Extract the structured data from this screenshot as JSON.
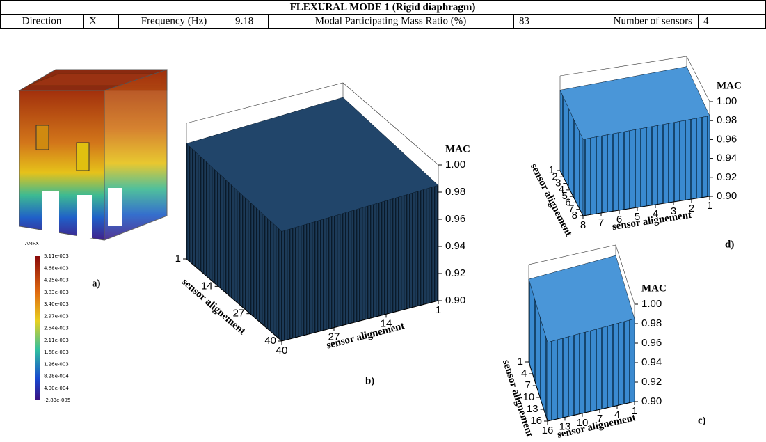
{
  "table": {
    "title": "FLEXURAL  MODE 1 (Rigid diaphragm)",
    "row": [
      "Direction",
      "X",
      "Frequency (Hz)",
      9.18,
      "Modal Participating Mass Ratio (%)",
      83,
      "Number of sensors",
      4
    ]
  },
  "panel_a": {
    "label": "a)",
    "legend_title": "AMPX",
    "legend_values": [
      "5.11e-003",
      "4.68e-003",
      "4.25e-003",
      "3.83e-003",
      "3.40e-003",
      "2.97e-003",
      "2.54e-003",
      "2.11e-003",
      "1.68e-003",
      "1.26e-003",
      "8.28e-004",
      "4.00e-004",
      "-2.83e-005"
    ]
  },
  "panels": [
    {
      "label": "b)",
      "zlabel": "MAC",
      "xlabel": "sensor alignement",
      "ylabel": "sensor alignement",
      "xticks": [
        1,
        14,
        27,
        40
      ],
      "yticks": [
        40,
        27,
        14,
        1
      ],
      "zlim": [
        0.9,
        1.0
      ],
      "zticks": [
        {
          "value": 1.0,
          "label": "1.00"
        },
        0.98,
        0.96,
        0.94,
        0.92,
        {
          "value": 0.9,
          "label": "0.90"
        }
      ]
    },
    {
      "label": "c)",
      "zlabel": "MAC",
      "xlabel": "sensor alignement",
      "ylabel": "sensor alignement",
      "xticks": [
        1,
        4,
        7,
        10,
        13,
        16
      ],
      "yticks": [
        16,
        13,
        10,
        7,
        4,
        1
      ],
      "zlim": [
        0.9,
        1.0
      ],
      "zticks": [
        {
          "value": 1.0,
          "label": "1.00"
        },
        0.98,
        0.96,
        0.94,
        0.92,
        {
          "value": 0.9,
          "label": "0.90"
        }
      ]
    },
    {
      "label": "d)",
      "zlabel": "MAC",
      "xlabel": "sensor alignement",
      "ylabel": "sensor alignement",
      "xticks": [
        1,
        2,
        3,
        4,
        5,
        6,
        7,
        8
      ],
      "yticks": [
        8,
        7,
        6,
        5,
        4,
        3,
        2,
        1
      ],
      "zlim": [
        0.9,
        1.0
      ],
      "zticks": [
        {
          "value": 1.0,
          "label": "1.00"
        },
        0.98,
        0.96,
        0.94,
        0.92,
        {
          "value": 0.9,
          "label": "0.90"
        }
      ]
    }
  ]
}
